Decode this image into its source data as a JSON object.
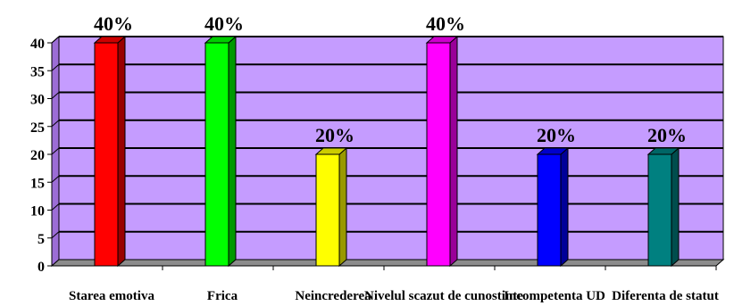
{
  "chart_data": {
    "type": "bar",
    "categories": [
      "Starea emotiva",
      "Frica",
      "Neincrederea",
      "Nivelul scazut de cunostinte",
      "Incompetenta UD",
      "Diferenta de statut"
    ],
    "values": [
      40,
      40,
      20,
      40,
      20,
      20
    ],
    "data_labels": [
      "40%",
      "40%",
      "20%",
      "40%",
      "20%",
      "20%"
    ],
    "bar_colors": [
      "#ff0000",
      "#00ff00",
      "#ffff00",
      "#ff00ff",
      "#0000ff",
      "#008080"
    ],
    "ylim": [
      0,
      40
    ],
    "yticks": [
      "0",
      "5",
      "10",
      "15",
      "20",
      "25",
      "30",
      "35",
      "40"
    ],
    "ytick_values": [
      0,
      5,
      10,
      15,
      20,
      25,
      30,
      35,
      40
    ],
    "grid": true,
    "legend": "none",
    "title": "",
    "xlabel": "",
    "ylabel": "",
    "plot_background": "#c59cff",
    "wall_side_color": "#9c6dd6",
    "floor_color": "#8c8c8c",
    "gridline_color": "#000000"
  }
}
